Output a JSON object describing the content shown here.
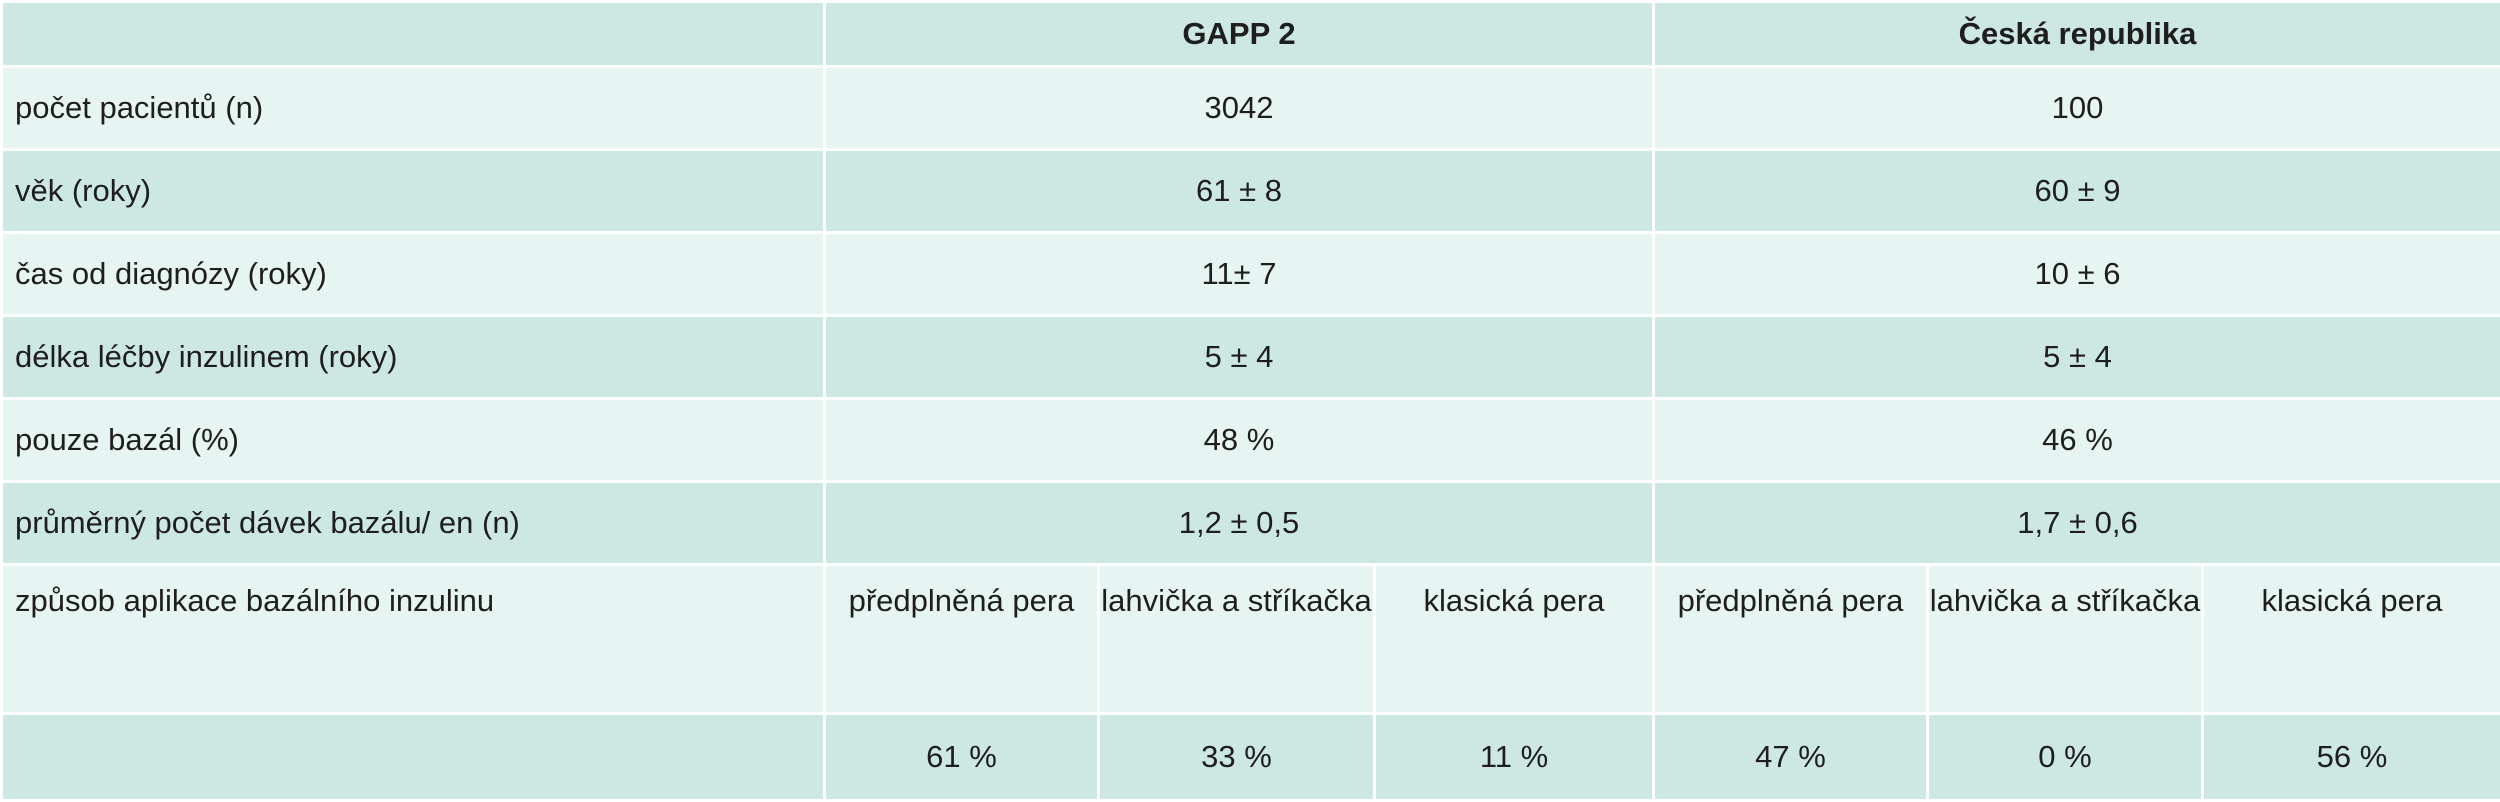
{
  "table": {
    "header": {
      "corner": "",
      "col1": "GAPP 2",
      "col2": "Česká republika"
    },
    "rows": [
      {
        "label": "počet pacientů (n)",
        "v1": "3042",
        "v2": "100"
      },
      {
        "label": "věk (roky)",
        "v1": "61 ± 8",
        "v2": "60 ± 9"
      },
      {
        "label": "čas od diagnózy (roky)",
        "v1": "11± 7",
        "v2": "10 ± 6"
      },
      {
        "label": "délka léčby inzulinem (roky)",
        "v1": "5 ± 4",
        "v2": "5 ± 4"
      },
      {
        "label": "pouze bazál (%)",
        "v1": "48 %",
        "v2": "46 %"
      },
      {
        "label": "průměrný počet dávek bazálu/ en (n)",
        "v1": "1,2 ± 0,5",
        "v2": "1,7 ± 0,6"
      }
    ],
    "method": {
      "label": "způsob aplikace bazálního inzulinu",
      "gapp": {
        "prefilled": "předplněná pera",
        "vial": "lahvička a stříkačka",
        "classic": "klasická pera"
      },
      "cz": {
        "prefilled": "předplněná pera",
        "vial": "lahvička a stříkačka",
        "classic": "klasická pera"
      }
    },
    "method_pct": {
      "gapp": {
        "prefilled": "61 %",
        "vial": "33 %",
        "classic": "11 %"
      },
      "cz": {
        "prefilled": "47 %",
        "vial": "0 %",
        "classic": "56 %"
      }
    }
  },
  "colors": {
    "dark": "#cde8e3",
    "light": "#e6f4f2",
    "border": "#ffffff"
  }
}
